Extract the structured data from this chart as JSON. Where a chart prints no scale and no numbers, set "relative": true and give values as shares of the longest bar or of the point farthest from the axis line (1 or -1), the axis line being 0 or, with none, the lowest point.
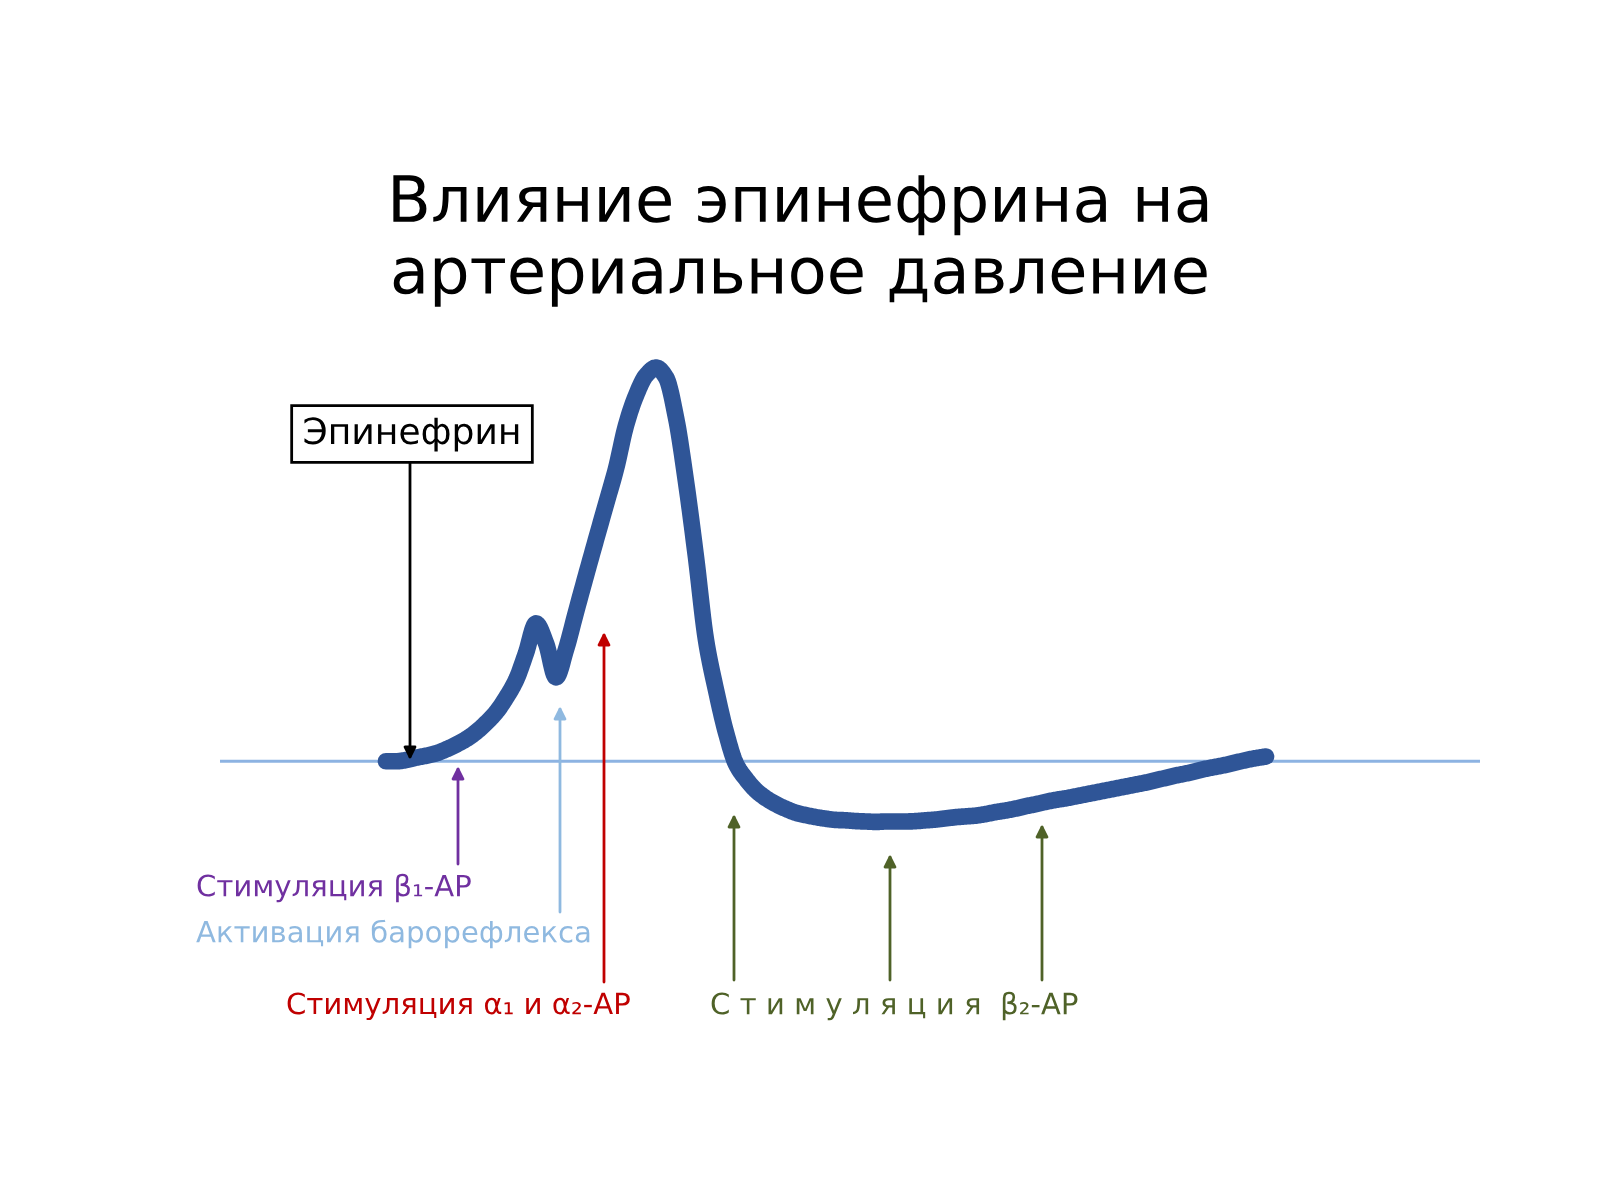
{
  "chart_data": {
    "type": "line",
    "title": "Влияние эпинефрина на\nартериальное давление",
    "relative": true,
    "categories": [
      null,
      null,
      null,
      null,
      null,
      null,
      null,
      null,
      null,
      null,
      null,
      null,
      null,
      null,
      null,
      null,
      null,
      null,
      null,
      null,
      null,
      null,
      null,
      null,
      null,
      null,
      null,
      null,
      null,
      null,
      null,
      null,
      null,
      null,
      null,
      null,
      null,
      null,
      null,
      null,
      null,
      null,
      null,
      null,
      null,
      null,
      null,
      null,
      null,
      null,
      null,
      null,
      null,
      null,
      null,
      null,
      null,
      null,
      null,
      null,
      null,
      null,
      null,
      null,
      null,
      null,
      null,
      null,
      null,
      null,
      null,
      null,
      null,
      null,
      null,
      null,
      null,
      null,
      null,
      null,
      null,
      null,
      null,
      null,
      null,
      null,
      null,
      null,
      null
    ],
    "series": [
      {
        "color": "#2f5597",
        "values": [
          0.0,
          0.0,
          0.003,
          0.009,
          0.014,
          0.02,
          0.03,
          0.042,
          0.056,
          0.074,
          0.097,
          0.124,
          0.161,
          0.206,
          0.275,
          0.35,
          0.3,
          0.213,
          0.284,
          0.379,
          0.472,
          0.563,
          0.653,
          0.743,
          0.853,
          0.929,
          0.98,
          1.0,
          0.975,
          0.873,
          0.71,
          0.518,
          0.308,
          0.181,
          0.073,
          -0.007,
          -0.045,
          -0.074,
          -0.094,
          -0.109,
          -0.121,
          -0.131,
          -0.137,
          -0.142,
          -0.146,
          -0.149,
          -0.15,
          -0.152,
          -0.153,
          -0.154,
          -0.153,
          -0.153,
          -0.153,
          -0.152,
          -0.15,
          -0.148,
          -0.145,
          -0.142,
          -0.14,
          -0.138,
          -0.134,
          -0.129,
          -0.125,
          -0.12,
          -0.114,
          -0.109,
          -0.103,
          -0.098,
          -0.094,
          -0.089,
          -0.084,
          -0.079,
          -0.074,
          -0.069,
          -0.064,
          -0.059,
          -0.054,
          -0.048,
          -0.042,
          -0.036,
          -0.031,
          -0.025,
          -0.019,
          -0.014,
          -0.009,
          -0.003,
          0.003,
          0.008,
          0.012
        ]
      }
    ],
    "ref_lines": [
      {
        "axis": "y",
        "value": 0,
        "color": "#8db3e2"
      }
    ],
    "annotations": [
      "Эпинефрин",
      "Стимуляция β₁-АР",
      "Активация барорефлекса",
      "Стимуляция α₁ и α₂-АР",
      "С т и м у л я ц и я  β₂-АР"
    ]
  }
}
